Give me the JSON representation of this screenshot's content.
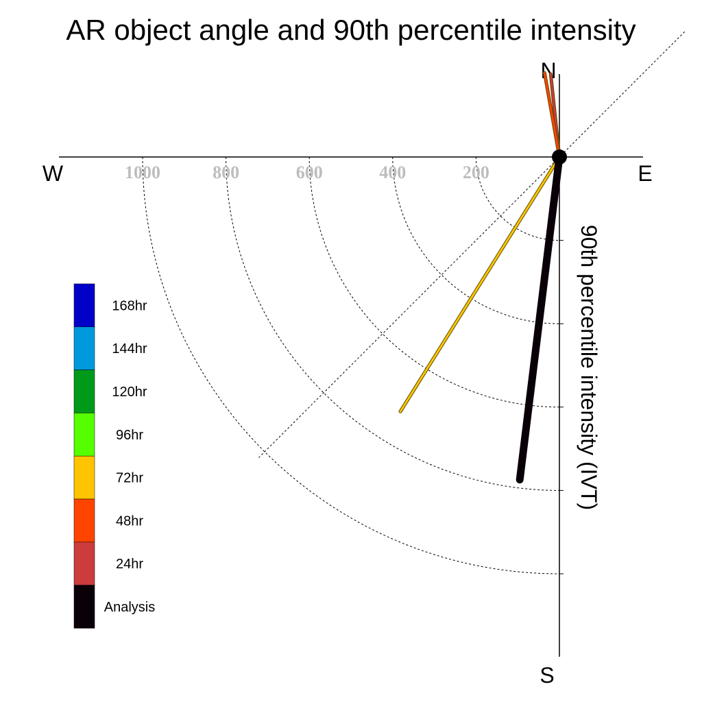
{
  "chart_data": {
    "type": "polar-vector",
    "title": "AR object angle and 90th percentile intensity",
    "radial_label": "90th percentile intensity (IVT)",
    "directions": {
      "north": "N",
      "east": "E",
      "south": "S",
      "west": "W"
    },
    "radial_ticks": [
      200,
      400,
      600,
      800,
      1000
    ],
    "radial_tick_labels": [
      "200",
      "400",
      "600",
      "800",
      "1000"
    ],
    "radial_max": 1200,
    "legend": [
      {
        "label": "168hr",
        "color": "#0000C8"
      },
      {
        "label": "144hr",
        "color": "#0099DD"
      },
      {
        "label": "120hr",
        "color": "#009A1B"
      },
      {
        "label": "96hr",
        "color": "#55FF00"
      },
      {
        "label": "72hr",
        "color": "#FFC400"
      },
      {
        "label": "48hr",
        "color": "#FF4400"
      },
      {
        "label": "24hr",
        "color": "#CC3C3C"
      },
      {
        "label": "Analysis",
        "color": "#0A0008"
      }
    ],
    "vectors": [
      {
        "series": "Analysis",
        "angle_deg": 187,
        "intensity": 780
      },
      {
        "series": "72hr",
        "angle_deg": 212,
        "intensity": 720
      },
      {
        "series": "48hr",
        "angle_deg": 350,
        "intensity": 205
      },
      {
        "series": "24hr",
        "angle_deg": 354,
        "intensity": 200
      }
    ]
  }
}
